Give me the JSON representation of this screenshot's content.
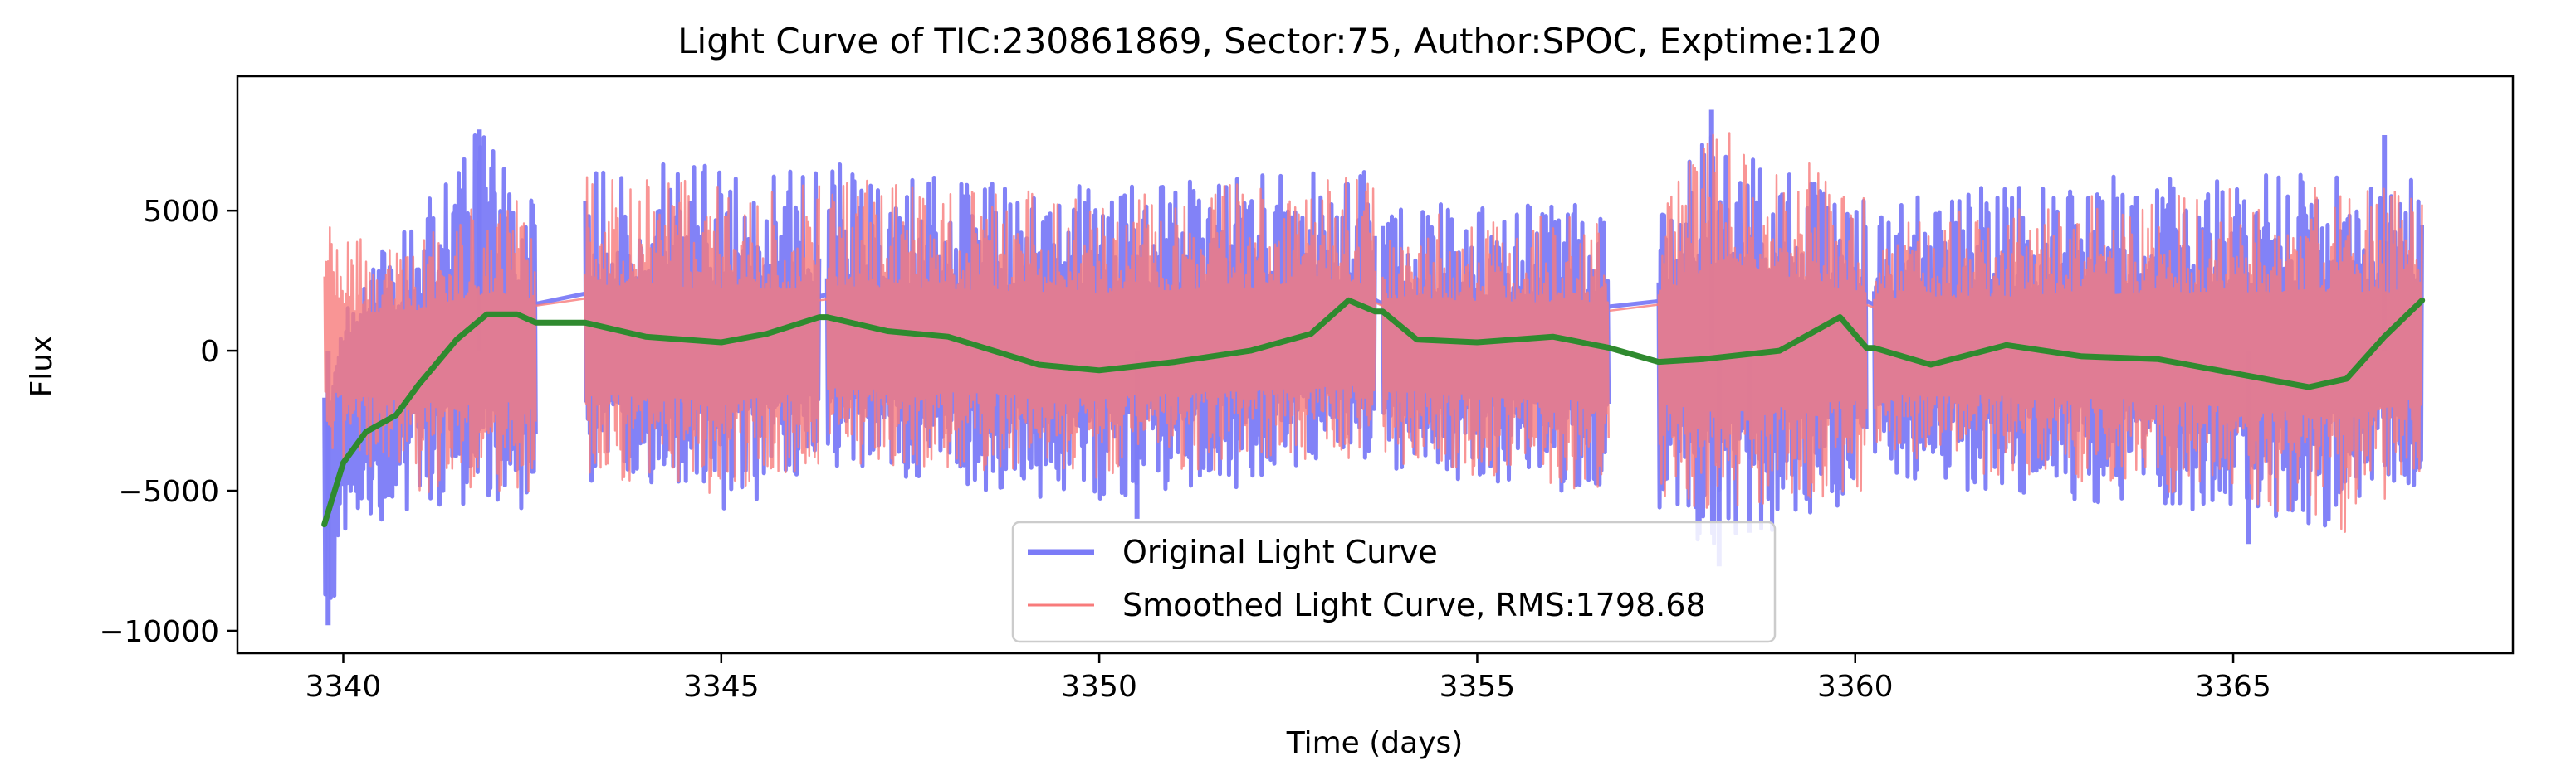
{
  "chart_data": {
    "type": "line",
    "title": "Light Curve of TIC:230861869, Sector:75, Author:SPOC, Exptime:120",
    "xlabel": "Time (days)",
    "ylabel": "Flux",
    "xlim": [
      3338.6,
      3368.7
    ],
    "ylim": [
      -10800,
      9800
    ],
    "x_ticks": [
      3340,
      3345,
      3350,
      3355,
      3360,
      3365
    ],
    "x_tick_labels": [
      "3340",
      "3345",
      "3350",
      "3355",
      "3360",
      "3365"
    ],
    "y_ticks": [
      -10000,
      -5000,
      0,
      5000
    ],
    "y_tick_labels": [
      "−10000",
      "−5000",
      "0",
      "5000"
    ],
    "grid": false,
    "legend_position": "lower-center",
    "segments": [
      [
        3339.75,
        3342.55
      ],
      [
        3343.2,
        3346.3
      ],
      [
        3346.4,
        3353.65
      ],
      [
        3353.75,
        3356.75
      ],
      [
        3357.4,
        3360.15
      ],
      [
        3360.25,
        3367.5
      ]
    ],
    "series": [
      {
        "name": "Original Light Curve",
        "role": "original",
        "color": "#7b7bf7",
        "envelope": {
          "x": [
            3339.8,
            3340.0,
            3340.5,
            3341.0,
            3341.8,
            3342.5,
            3343.2,
            3345.0,
            3346.3,
            3346.5,
            3348.0,
            3350.0,
            3352.0,
            3353.5,
            3353.8,
            3355.0,
            3356.7,
            3357.5,
            3358.2,
            3359.0,
            3360.1,
            3360.3,
            3362.0,
            3364.0,
            3366.0,
            3367.5
          ],
          "upper": [
            -3000,
            1500,
            3500,
            5000,
            8000,
            5500,
            6800,
            6600,
            6500,
            6800,
            6200,
            5900,
            6300,
            6800,
            5300,
            5200,
            5200,
            6000,
            8300,
            6400,
            6100,
            5300,
            6000,
            6300,
            6300,
            6200
          ],
          "lower": [
            -9900,
            -8000,
            -6500,
            -5500,
            -5600,
            -5700,
            -4700,
            -5700,
            -4600,
            -4200,
            -5000,
            -5500,
            -5000,
            -3900,
            -4200,
            -4700,
            -5300,
            -5800,
            -7500,
            -6500,
            -5300,
            -4500,
            -5200,
            -5700,
            -6500,
            -5000
          ]
        },
        "spikes": [
          [
            3341.8,
            7900
          ],
          [
            3358.1,
            8600
          ],
          [
            3367.0,
            7700
          ],
          [
            3339.8,
            -9800
          ],
          [
            3358.2,
            -7700
          ],
          [
            3358.6,
            -6500
          ],
          [
            3350.5,
            -6000
          ],
          [
            3365.2,
            -6900
          ]
        ]
      },
      {
        "name": "Smoothed Light Curve, RMS:1798.68",
        "role": "smoothed",
        "color": "#f87b7b",
        "envelope": {
          "x": [
            3339.8,
            3340.0,
            3340.5,
            3341.0,
            3342.0,
            3342.5,
            3343.2,
            3345.0,
            3346.3,
            3346.5,
            3350.0,
            3353.5,
            3353.8,
            3356.7,
            3357.5,
            3358.2,
            3360.1,
            3360.3,
            3364.0,
            3366.5,
            3367.5
          ],
          "upper": [
            4600,
            4200,
            3800,
            4200,
            5800,
            5300,
            6200,
            6100,
            6000,
            6200,
            5600,
            6400,
            5100,
            4700,
            5600,
            8800,
            5600,
            5000,
            5700,
            6000,
            5600
          ],
          "lower": [
            -4000,
            -4400,
            -4600,
            -5100,
            -5000,
            -5500,
            -4400,
            -5200,
            -4200,
            -4000,
            -4700,
            -3800,
            -4000,
            -5100,
            -5200,
            -6200,
            -5000,
            -4300,
            -5000,
            -6600,
            -4600
          ]
        },
        "spikes": []
      },
      {
        "name": "",
        "role": "trend",
        "color": "#2f8a2f",
        "x": [
          3339.75,
          3340.0,
          3340.3,
          3340.7,
          3341.0,
          3341.5,
          3341.9,
          3342.3,
          3342.55,
          3343.2,
          3344.0,
          3345.0,
          3345.6,
          3346.3,
          3346.4,
          3347.2,
          3348.0,
          3349.2,
          3350.0,
          3351.0,
          3352.0,
          3352.8,
          3353.3,
          3353.65,
          3353.75,
          3354.2,
          3355.0,
          3356.0,
          3356.75,
          3357.4,
          3358.0,
          3359.0,
          3359.8,
          3360.15,
          3360.25,
          3361.0,
          3362.0,
          3363.0,
          3364.0,
          3365.0,
          3366.0,
          3366.5,
          3367.0,
          3367.5
        ],
        "y": [
          -6200,
          -4000,
          -2900,
          -2300,
          -1200,
          400,
          1300,
          1300,
          1000,
          1000,
          500,
          300,
          600,
          1200,
          1200,
          700,
          500,
          -500,
          -700,
          -400,
          0,
          600,
          1800,
          1400,
          1400,
          400,
          300,
          500,
          100,
          -400,
          -300,
          0,
          1200,
          100,
          100,
          -500,
          200,
          -200,
          -300,
          -800,
          -1300,
          -1000,
          500,
          1800
        ]
      }
    ],
    "legend": [
      {
        "label": "Original Light Curve",
        "color": "#7b7bf7"
      },
      {
        "label": "Smoothed Light Curve, RMS:1798.68",
        "color": "#f87b7b"
      }
    ]
  }
}
